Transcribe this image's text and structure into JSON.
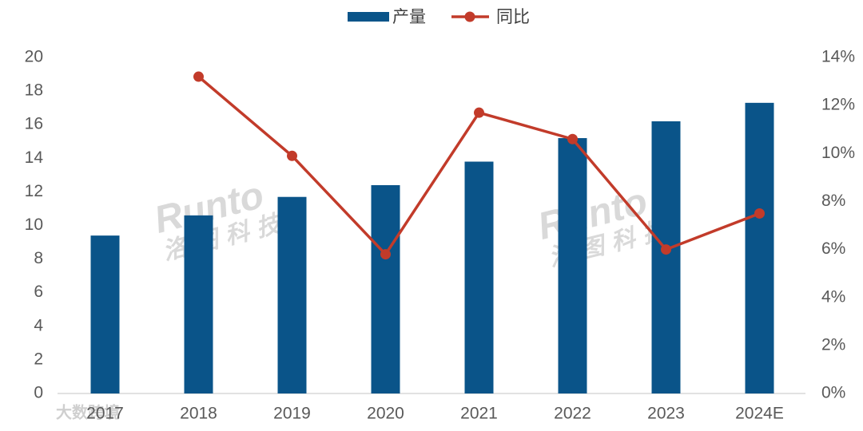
{
  "chart_data": {
    "type": "bar-line",
    "categories": [
      "2017",
      "2018",
      "2019",
      "2020",
      "2021",
      "2022",
      "2023",
      "2024E"
    ],
    "series": [
      {
        "name": "产量",
        "type": "bar",
        "color": "#0a5489",
        "values": [
          9.4,
          10.6,
          11.7,
          12.4,
          13.8,
          15.2,
          16.2,
          17.3
        ]
      },
      {
        "name": "同比",
        "type": "line",
        "axis": "y2",
        "color": "#c23b2a",
        "values": [
          null,
          13.2,
          9.9,
          5.8,
          11.7,
          10.6,
          6.0,
          7.5
        ]
      }
    ],
    "ylim": [
      0,
      20
    ],
    "yticks": [
      0,
      2,
      4,
      6,
      8,
      10,
      12,
      14,
      16,
      18,
      20
    ],
    "y2lim": [
      0,
      14
    ],
    "y2ticks": [
      {
        "value": 0,
        "label": "0%"
      },
      {
        "value": 2,
        "label": "2%"
      },
      {
        "value": 4,
        "label": "4%"
      },
      {
        "value": 6,
        "label": "6%"
      },
      {
        "value": 8,
        "label": "8%"
      },
      {
        "value": 10,
        "label": "10%"
      },
      {
        "value": 12,
        "label": "12%"
      },
      {
        "value": 14,
        "label": "14%"
      }
    ],
    "grid": false,
    "legend": "top",
    "watermarks": [
      "Runto",
      "洛图科技",
      "Runto",
      "洛图科技",
      "大数跨境"
    ]
  }
}
